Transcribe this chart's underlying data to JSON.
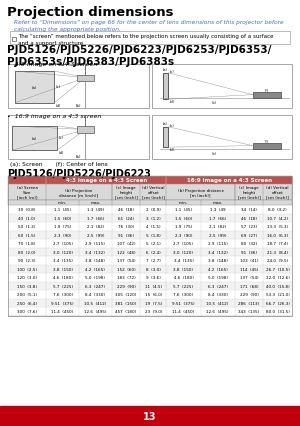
{
  "title": "Projection dimensions",
  "subtitle_link": "Refer to “Dimensions” on page 66 for the center of lens dimensions of this projector before\ncalculating the appropriate position.",
  "note": "The “screen” mentioned below refers to the projection screen usually consisting of a surface\nand a support structure",
  "model_header": "PJD5126/PJD5226/PJD6223/PJD6253/PJD6353/\nPJD6353s/PJD6383/PJD6383s",
  "bullet1": "4:3 image on a 4:3 screen",
  "bullet2": "16:9 image on a 4:3 screen",
  "diagram_caption": "(a): Screen       (f): Center of lens",
  "sub_model": "PJD5126/PJD5226/PJD6223",
  "page_number": "13",
  "bg_color": "#ffffff",
  "footer_color": "#c0000c",
  "table_header_bg": "#d9d9d9",
  "table_alt_row": "#f2f2f2",
  "table_data": [
    [
      "30  (0.8)",
      "1.1  (45)",
      "1.3  (49)",
      "46  (18)",
      "2  (0.9)",
      "1.1  (45)",
      "1.3  (49",
      "34  (14)",
      "8.0  (3.2)"
    ],
    [
      "40  (1.0)",
      "1.5  (60)",
      "1.7  (66)",
      "61  (24)",
      "3  (1.2)",
      "1.5  (60)",
      "1.7  (66)",
      "46  (18)",
      "10.7  (4.2)"
    ],
    [
      "50  (1.3)",
      "1.9  (75)",
      "2.1  (82)",
      "76  (30)",
      "4  (1.5)",
      "1.9  (75)",
      "2.1  (82)",
      "57  (23)",
      "13.3  (5.3)"
    ],
    [
      "60  (1.5)",
      "2.3  (90)",
      "2.5  (99)",
      "91  (36)",
      "5  (1.8)",
      "2.3  (90)",
      "2.5  (99)",
      "69  (27)",
      "16.0  (6.3)"
    ],
    [
      "70  (1.8)",
      "2.7  (105)",
      "2.9  (115)",
      "107  (42)",
      "5  (2.1)",
      "2.7  (105)",
      "2.9  (115)",
      "80  (32)",
      "18.7  (7.4)"
    ],
    [
      "80  (2.0)",
      "3.0  (120)",
      "3.4  (132)",
      "122  (48)",
      "6  (2.4)",
      "3.0  (120)",
      "3.4  (132)",
      "91  (36)",
      "21.3  (8.4)"
    ],
    [
      "90  (2.3)",
      "3.4  (135)",
      "3.8  (148)",
      "137  (54)",
      "7  (2.7)",
      "3.4  (135)",
      "3.8  (148)",
      "103  (41)",
      "24.0  (9.5)"
    ],
    [
      "100  (2.5)",
      "3.8  (150)",
      "4.2  (165)",
      "152  (60)",
      "8  (3.0)",
      "3.8  (150)",
      "4.2  (165)",
      "114  (45)",
      "26.7  (10.5)"
    ],
    [
      "120  (3.0)",
      "4.6  (180)",
      "5.0  (198)",
      "183  (72)",
      "9  (3.6)",
      "4.6  (180)",
      "5.0  (198)",
      "137  (54)",
      "32.0  (12.6)"
    ],
    [
      "150  (3.8)",
      "5.7  (225)",
      "6.3  (247)",
      "229  (90)",
      "11  (4.5)",
      "5.7  (225)",
      "6.3  (247)",
      "171  (68)",
      "40.0  (15.8)"
    ],
    [
      "200  (5.1)",
      "7.6  (300)",
      "8.4  (330)",
      "305  (120)",
      "15  (6.0)",
      "7.6  (300)",
      "8.4  (330)",
      "229  (90)",
      "53.3  (21.0)"
    ],
    [
      "250  (6.4)",
      "9.51  (375)",
      "10.5  (412)",
      "381  (150)",
      "19  (7.5)",
      "9.51  (375)",
      "10.5  (412)",
      "286  (113)",
      "66.7  (26.3)"
    ],
    [
      "300  (7.6)",
      "11.4  (450)",
      "12.6  (495)",
      "457  (180)",
      "23  (9.0)",
      "11.4  (450)",
      "12.6  (495)",
      "343  (135)",
      "80.0  (31.5)"
    ]
  ]
}
